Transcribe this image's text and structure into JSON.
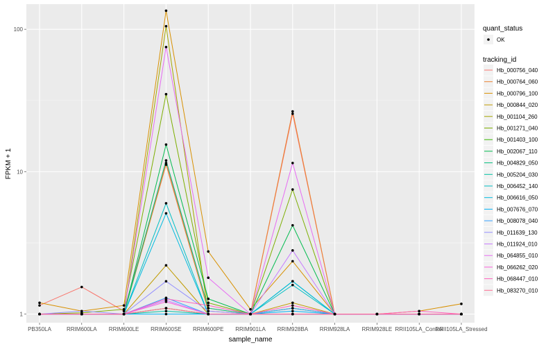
{
  "chart_data": {
    "type": "line",
    "title": "",
    "xlabel": "sample_name",
    "ylabel": "FPKM + 1",
    "y_scale": "log10",
    "ylim": [
      0.87,
      150
    ],
    "y_ticks": [
      {
        "value": 1,
        "label": "1"
      },
      {
        "value": 10,
        "label": "10"
      },
      {
        "value": 100,
        "label": "100"
      }
    ],
    "categories": [
      "PB350LA",
      "RRIM600LA",
      "RRIM600LE",
      "RRIM600SE",
      "RRIM600PE",
      "RRIM901LA",
      "RRIM928BA",
      "RRIM928LA",
      "RRIM928LE",
      "RRII105LA_Control",
      "RRII105LA_Stressed"
    ],
    "legend_quant": {
      "title": "quant_status",
      "entries": [
        "OK"
      ]
    },
    "legend_tracking_title": "tracking_id",
    "series": [
      {
        "name": "Hb_000756_040",
        "color": "#F8766D",
        "values": [
          1.15,
          1.55,
          1.05,
          11.5,
          1.1,
          1.0,
          25.5,
          1.0,
          1.0,
          1.0,
          1.0
        ]
      },
      {
        "name": "Hb_000764_060",
        "color": "#EA8331",
        "values": [
          1.0,
          1.0,
          1.0,
          11.2,
          1.05,
          1.0,
          26.5,
          1.0,
          1.0,
          1.0,
          1.0
        ]
      },
      {
        "name": "Hb_000796_100",
        "color": "#D89000",
        "values": [
          1.2,
          1.05,
          1.15,
          135,
          2.75,
          1.08,
          2.35,
          1.0,
          1.0,
          1.05,
          1.18
        ]
      },
      {
        "name": "Hb_000844_020",
        "color": "#C09B00",
        "values": [
          1.0,
          1.0,
          1.0,
          2.2,
          1.0,
          1.0,
          1.2,
          1.0,
          1.0,
          1.0,
          1.0
        ]
      },
      {
        "name": "Hb_001104_260",
        "color": "#A3A500",
        "values": [
          1.0,
          1.0,
          1.0,
          105,
          1.0,
          1.0,
          1.0,
          1.0,
          1.0,
          1.0,
          1.0
        ]
      },
      {
        "name": "Hb_001271_040",
        "color": "#7CAE00",
        "values": [
          1.0,
          1.02,
          1.08,
          35,
          1.2,
          1.0,
          7.5,
          1.0,
          1.0,
          1.0,
          1.0
        ]
      },
      {
        "name": "Hb_001403_100",
        "color": "#39B600",
        "values": [
          1.0,
          1.0,
          1.0,
          1.1,
          1.0,
          1.0,
          1.1,
          1.0,
          1.0,
          1.0,
          1.0
        ]
      },
      {
        "name": "Hb_002067_110",
        "color": "#00BB4E",
        "values": [
          1.0,
          1.0,
          1.0,
          15.5,
          1.28,
          1.0,
          4.2,
          1.0,
          1.0,
          1.0,
          1.0
        ]
      },
      {
        "name": "Hb_004829_050",
        "color": "#00BF7D",
        "values": [
          1.0,
          1.0,
          1.0,
          12.0,
          1.1,
          1.0,
          1.7,
          1.0,
          1.0,
          1.0,
          1.0
        ]
      },
      {
        "name": "Hb_005204_030",
        "color": "#00C1A3",
        "values": [
          1.0,
          1.0,
          1.0,
          1.05,
          1.0,
          1.0,
          1.0,
          1.0,
          1.0,
          1.0,
          1.0
        ]
      },
      {
        "name": "Hb_006452_140",
        "color": "#00BFC4",
        "values": [
          1.0,
          1.0,
          1.0,
          6.0,
          1.0,
          1.0,
          1.6,
          1.0,
          1.0,
          1.0,
          1.0
        ]
      },
      {
        "name": "Hb_006616_050",
        "color": "#00BAE0",
        "values": [
          1.0,
          1.0,
          1.0,
          5.1,
          1.0,
          1.0,
          1.7,
          1.0,
          1.0,
          1.0,
          1.0
        ]
      },
      {
        "name": "Hb_007676_070",
        "color": "#00B0F6",
        "values": [
          1.0,
          1.0,
          1.0,
          1.0,
          1.0,
          1.0,
          1.05,
          1.0,
          1.0,
          1.0,
          1.0
        ]
      },
      {
        "name": "Hb_008078_040",
        "color": "#35A2FF",
        "values": [
          1.0,
          1.0,
          1.0,
          1.3,
          1.0,
          1.0,
          1.1,
          1.0,
          1.0,
          1.0,
          1.0
        ]
      },
      {
        "name": "Hb_011639_130",
        "color": "#9590FF",
        "values": [
          1.0,
          1.05,
          1.0,
          1.7,
          1.05,
          1.0,
          1.0,
          1.0,
          1.0,
          1.0,
          1.0
        ]
      },
      {
        "name": "Hb_011924_010",
        "color": "#C77CFF",
        "values": [
          1.0,
          1.0,
          1.0,
          1.25,
          1.0,
          1.0,
          2.8,
          1.0,
          1.0,
          1.0,
          1.0
        ]
      },
      {
        "name": "Hb_064855_010",
        "color": "#E76BF3",
        "values": [
          1.0,
          1.0,
          1.0,
          75,
          1.8,
          1.0,
          11.5,
          1.0,
          1.0,
          1.0,
          1.0
        ]
      },
      {
        "name": "Hb_066262_020",
        "color": "#FA62DB",
        "values": [
          1.0,
          1.0,
          1.0,
          1.22,
          1.0,
          1.0,
          1.0,
          1.0,
          1.0,
          1.0,
          1.0
        ]
      },
      {
        "name": "Hb_068447_010",
        "color": "#FF62BC",
        "values": [
          1.0,
          1.0,
          1.0,
          1.28,
          1.15,
          1.0,
          1.15,
          1.0,
          1.0,
          1.05,
          1.0
        ]
      },
      {
        "name": "Hb_083270_010",
        "color": "#FF6C91",
        "values": [
          1.0,
          1.0,
          1.0,
          1.1,
          1.0,
          1.0,
          1.0,
          1.0,
          1.0,
          1.0,
          1.0
        ]
      }
    ]
  }
}
